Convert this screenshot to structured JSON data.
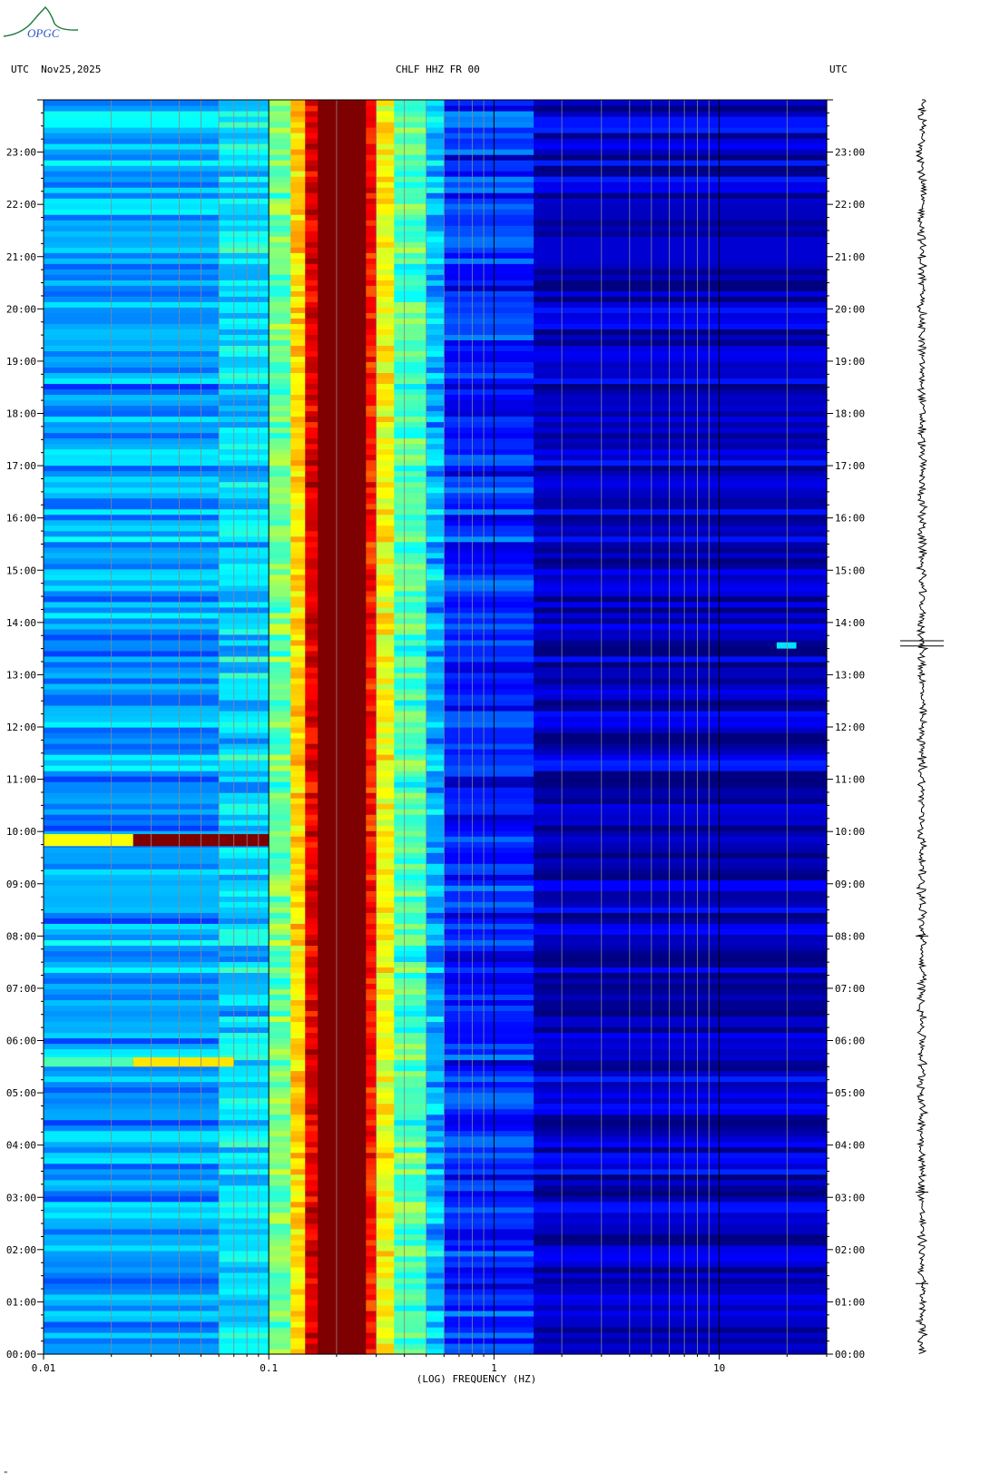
{
  "header": {
    "left": "UTC  Nov25,2025",
    "center": "CHLF HHZ FR 00",
    "right": "UTC"
  },
  "logo": {
    "text": "OPGC",
    "color": "#1a7a3a",
    "text_color": "#2a55c4"
  },
  "corner_mark": "\"",
  "chart_data": {
    "type": "heatmap",
    "title": "CHLF HHZ FR 00",
    "xlabel": "(LOG) FREQUENCY (HZ)",
    "ylabel": "UTC",
    "x_scale": "log",
    "xlim": [
      0.01,
      30
    ],
    "ylim": [
      0,
      24
    ],
    "x_ticks": [
      "0.01",
      "0.1",
      "1",
      "10"
    ],
    "y_ticks": [
      "00:00",
      "01:00",
      "02:00",
      "03:00",
      "04:00",
      "05:00",
      "06:00",
      "07:00",
      "08:00",
      "09:00",
      "10:00",
      "11:00",
      "12:00",
      "13:00",
      "14:00",
      "15:00",
      "16:00",
      "17:00",
      "18:00",
      "19:00",
      "20:00",
      "21:00",
      "22:00",
      "23:00"
    ],
    "colormap": [
      "#00007f",
      "#0000ff",
      "#007fff",
      "#00ffff",
      "#7fff7f",
      "#ffff00",
      "#ff7f00",
      "#ff0000",
      "#7f0000"
    ],
    "frequency_bands": [
      {
        "f_from": 0.01,
        "f_to": 0.06,
        "level": 0.28
      },
      {
        "f_from": 0.06,
        "f_to": 0.1,
        "level": 0.34
      },
      {
        "f_from": 0.1,
        "f_to": 0.125,
        "level": 0.48
      },
      {
        "f_from": 0.125,
        "f_to": 0.145,
        "level": 0.66
      },
      {
        "f_from": 0.145,
        "f_to": 0.165,
        "level": 0.9
      },
      {
        "f_from": 0.165,
        "f_to": 0.27,
        "level": 1.0
      },
      {
        "f_from": 0.27,
        "f_to": 0.3,
        "level": 0.85
      },
      {
        "f_from": 0.3,
        "f_to": 0.36,
        "level": 0.62
      },
      {
        "f_from": 0.36,
        "f_to": 0.5,
        "level": 0.45
      },
      {
        "f_from": 0.5,
        "f_to": 0.6,
        "level": 0.3
      },
      {
        "f_from": 0.6,
        "f_to": 1.5,
        "level": 0.16
      },
      {
        "f_from": 1.5,
        "f_to": 30,
        "level": 0.06
      }
    ],
    "events": [
      {
        "time_from": 9.72,
        "time_to": 9.95,
        "f_from": 0.01,
        "f_to": 0.025,
        "level": 0.62
      },
      {
        "time_from": 9.72,
        "time_to": 9.95,
        "f_from": 0.025,
        "f_to": 0.1,
        "level": 1.0
      },
      {
        "time_from": 5.5,
        "time_to": 5.68,
        "f_from": 0.01,
        "f_to": 0.025,
        "level": 0.45
      },
      {
        "time_from": 5.5,
        "time_to": 5.68,
        "f_from": 0.025,
        "f_to": 0.07,
        "level": 0.65
      },
      {
        "time_from": 13.5,
        "time_to": 13.62,
        "f_from": 18,
        "f_to": 22,
        "level": 0.35
      }
    ],
    "seismogram": {
      "time_range": [
        0,
        24
      ],
      "spikes_at": [
        13.55,
        13.65,
        8.0,
        3.1,
        1.35
      ]
    }
  }
}
